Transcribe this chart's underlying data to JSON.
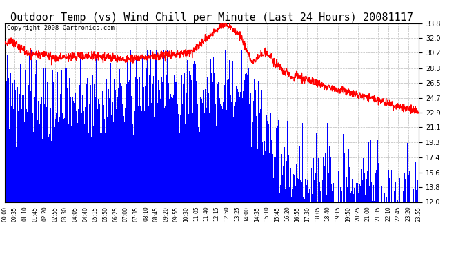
{
  "title": "Outdoor Temp (vs) Wind Chill per Minute (Last 24 Hours) 20081117",
  "copyright": "Copyright 2008 Cartronics.com",
  "y_ticks": [
    12.0,
    13.8,
    15.6,
    17.4,
    19.3,
    21.1,
    22.9,
    24.7,
    26.5,
    28.3,
    30.2,
    32.0,
    33.8
  ],
  "ylim": [
    12.0,
    33.8
  ],
  "x_labels": [
    "00:00",
    "00:35",
    "01:10",
    "01:45",
    "02:20",
    "02:55",
    "03:30",
    "04:05",
    "04:40",
    "05:15",
    "05:50",
    "06:25",
    "07:00",
    "07:35",
    "08:10",
    "08:45",
    "09:20",
    "09:55",
    "10:30",
    "11:05",
    "11:40",
    "12:15",
    "12:50",
    "13:25",
    "14:00",
    "14:35",
    "15:10",
    "15:45",
    "16:20",
    "16:55",
    "17:30",
    "18:05",
    "18:40",
    "19:15",
    "19:50",
    "20:25",
    "21:00",
    "21:35",
    "22:10",
    "22:45",
    "23:20",
    "23:55"
  ],
  "bg_color": "#ffffff",
  "grid_color": "#bbbbbb",
  "bar_color": "#0000ff",
  "line_color": "#ff0000",
  "title_fontsize": 11,
  "copyright_fontsize": 6.5,
  "figwidth": 6.9,
  "figheight": 3.75,
  "dpi": 100
}
